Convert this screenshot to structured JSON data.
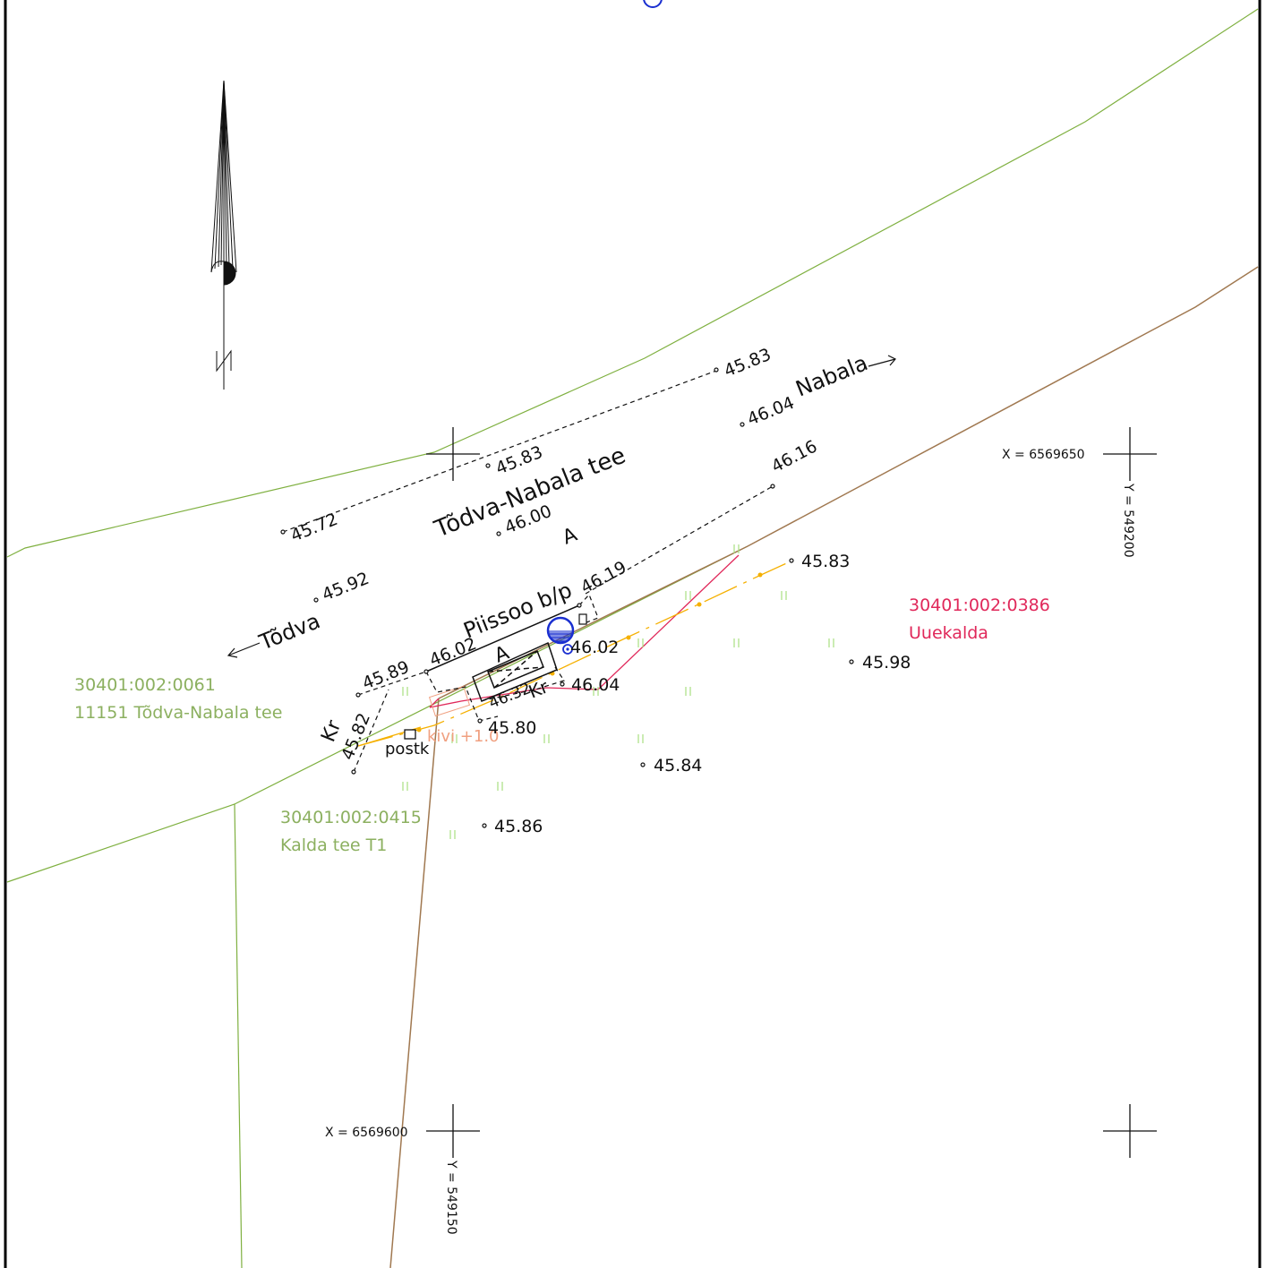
{
  "colors": {
    "frame": "#000000",
    "road_boundary": "#7fb040",
    "cadastral_brown": "#a07850",
    "parcel_red": "#e0285a",
    "utility_orange": "#f5b000",
    "water_blue": "#1a2fd0",
    "parcel_text_green": "#8cb060",
    "grass_symbol": "#a8e080"
  },
  "north_arrow": {
    "label": "N",
    "icon": "north-arrow-icon"
  },
  "grid": {
    "x1": "X = 6569650",
    "y1": "Y = 549200",
    "x2": "X = 6569600",
    "y2": "Y = 549150"
  },
  "road": {
    "name": "Tõdva-Nabala tee",
    "dir_left": "Tõdva",
    "dir_right": "Nabala",
    "surface_code": "A"
  },
  "property": {
    "name": "Piissoo b/p",
    "surface_code": "A",
    "gravel_left": "Kr",
    "gravel_right": "Kr"
  },
  "parcels": [
    {
      "code": "30401:002:0061",
      "name": "11151 Tõdva-Nabala tee"
    },
    {
      "code": "30401:002:0386",
      "name": "Uuekalda"
    },
    {
      "code": "30401:002:0415",
      "name": "Kalda tee T1"
    }
  ],
  "objects": {
    "post_label": "postk",
    "stone_label": "kivi +1.0"
  },
  "elevations": {
    "e1": "45.83",
    "e2": "46.04",
    "e3": "45.83",
    "e4": "46.16",
    "e5": "45.72",
    "e6": "46.00",
    "e7": "45.92",
    "e8": "46.19",
    "e9": "45.83",
    "e10": "45.98",
    "e11": "46.02",
    "e12": "46.02",
    "e13": "45.89",
    "e14": "46.04",
    "e15": "46.32",
    "e16": "45.82",
    "e17": "45.80",
    "e18": "45.84",
    "e19": "45.86"
  }
}
